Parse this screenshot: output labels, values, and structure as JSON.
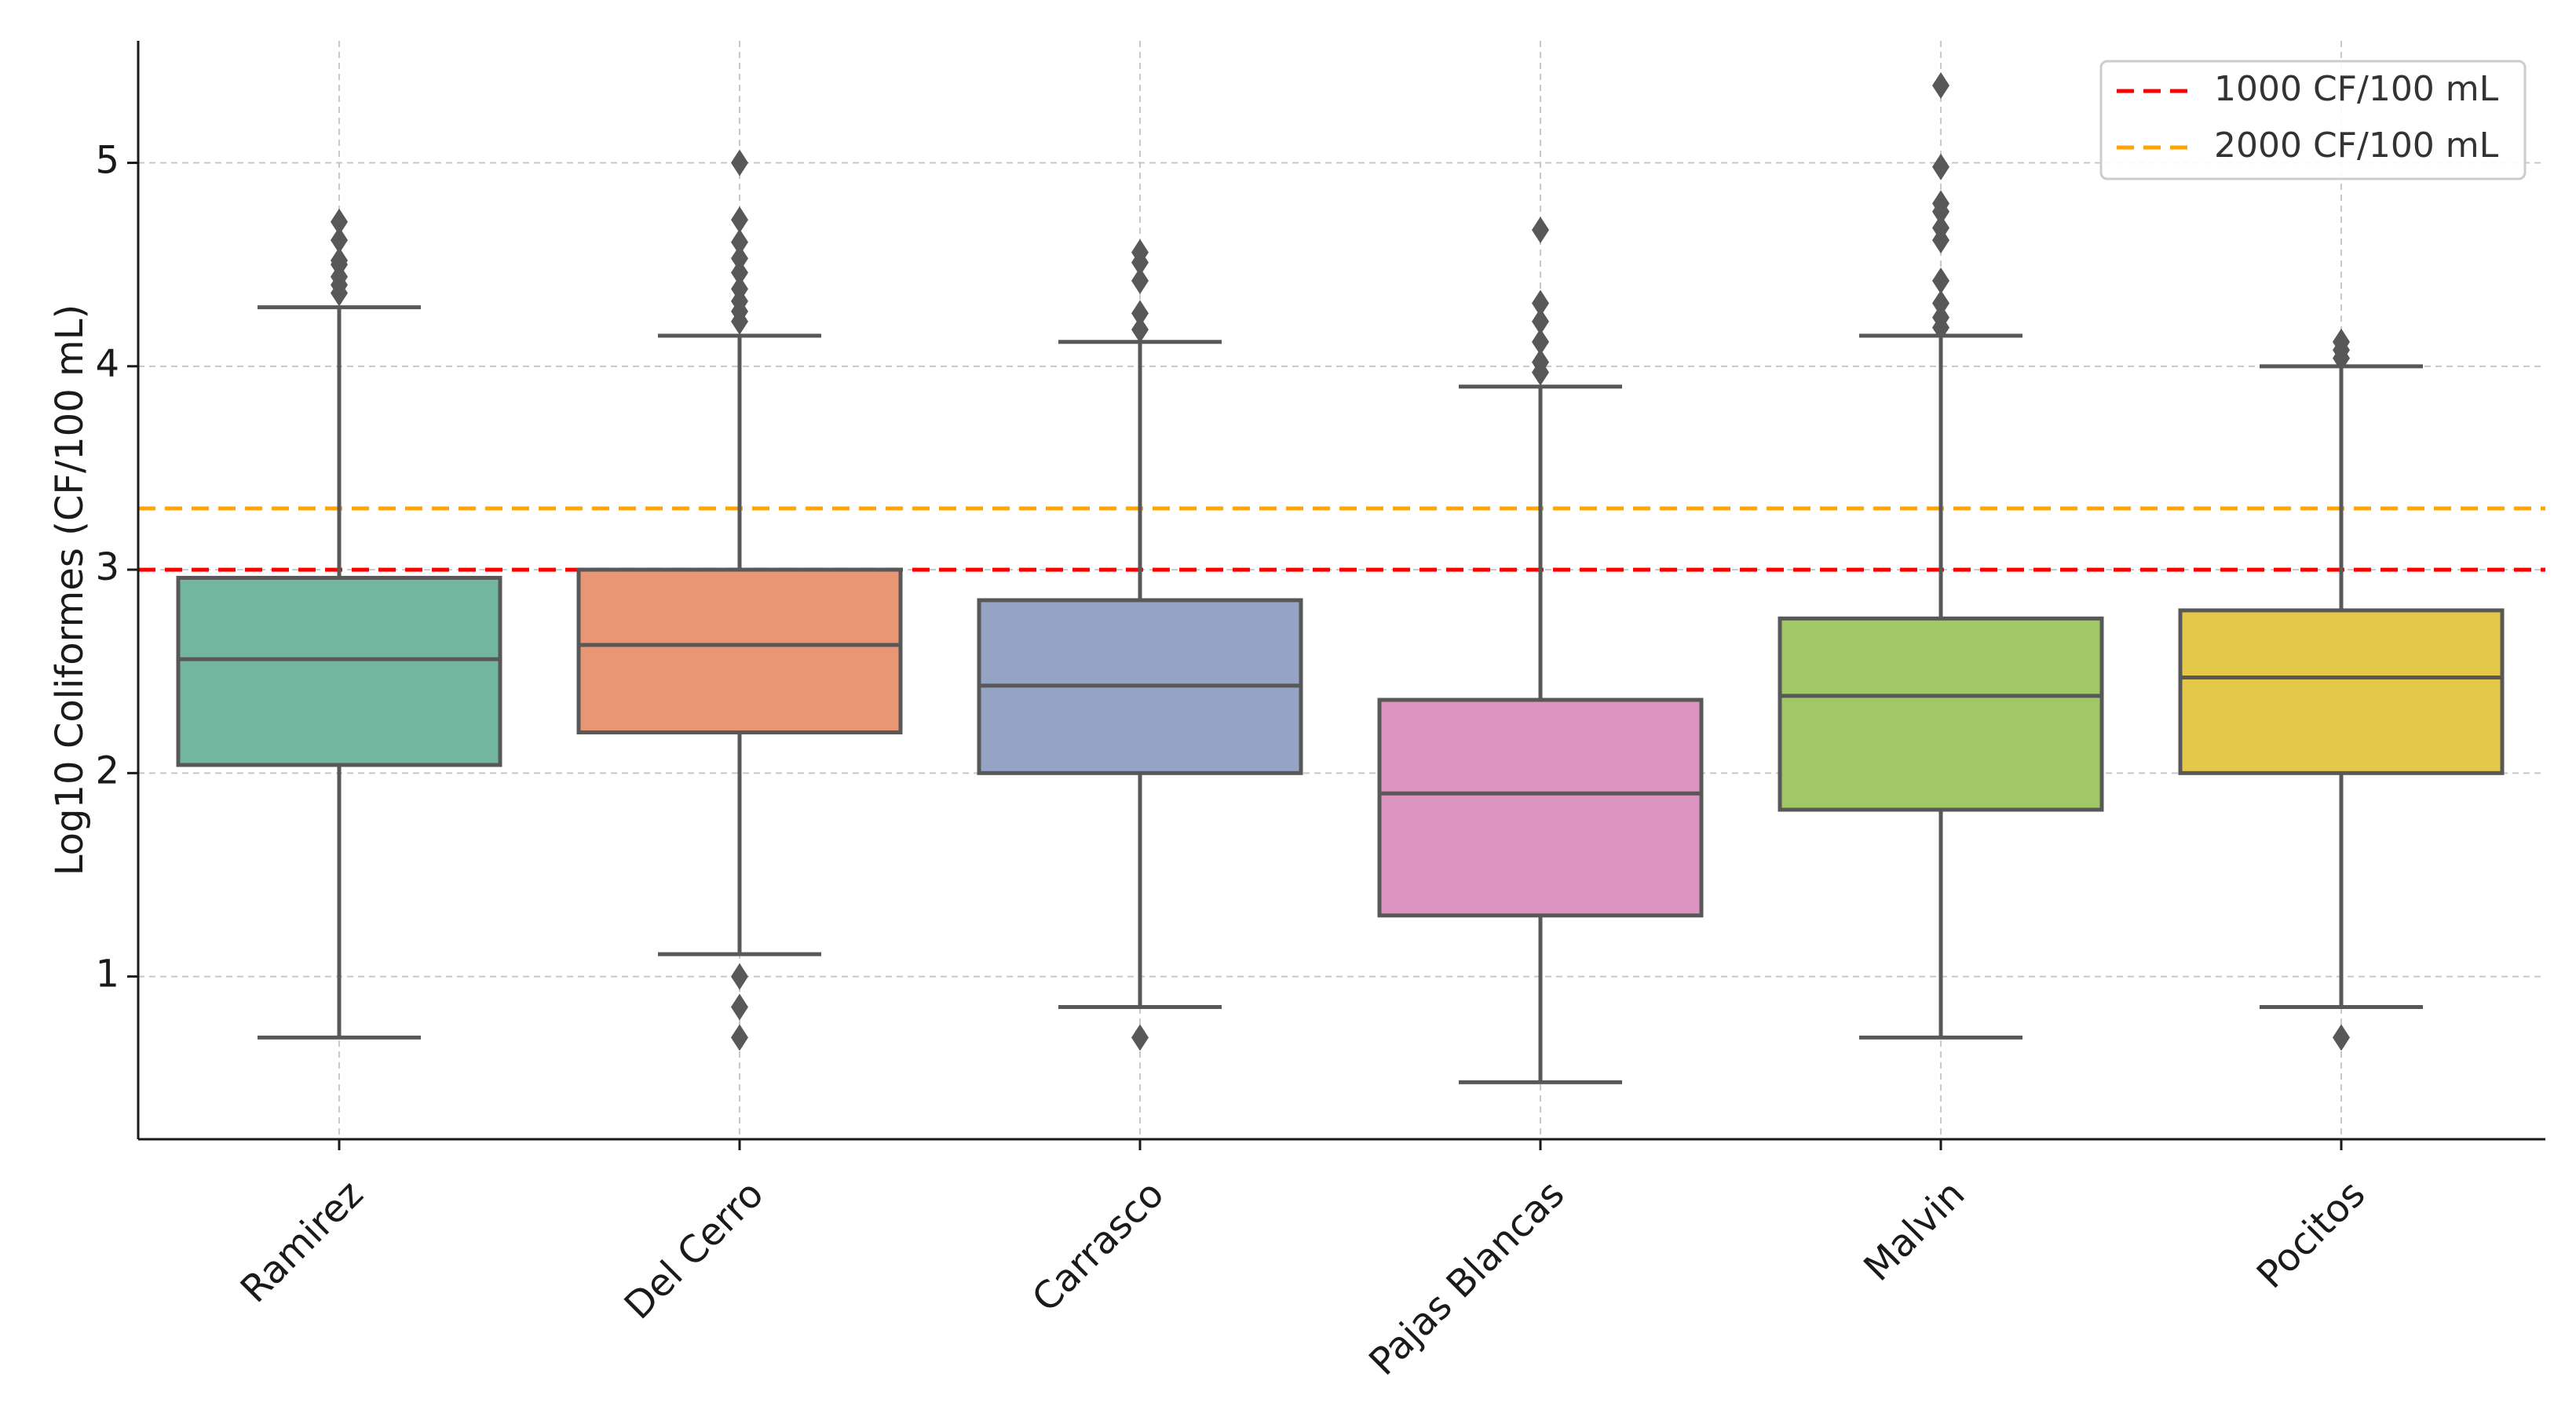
{
  "chart_data": {
    "type": "box",
    "title": "",
    "xlabel": "",
    "ylabel": "Log10 Coliformes (CF/100 mL)",
    "ylim": [
      0.2,
      5.6
    ],
    "yticks": [
      1,
      2,
      3,
      4,
      5
    ],
    "grid": true,
    "categories": [
      "Ramirez",
      "Del Cerro",
      "Carrasco",
      "Pajas Blancas",
      "Malvin",
      "Pocitos"
    ],
    "boxes": [
      {
        "name": "Ramirez",
        "color": "#72b6a0",
        "whisker_low": 0.7,
        "q1": 2.04,
        "median": 2.56,
        "q3": 2.96,
        "whisker_high": 4.29,
        "outliers": [
          4.36,
          4.4,
          4.44,
          4.5,
          4.52,
          4.62,
          4.71
        ]
      },
      {
        "name": "Del Cerro",
        "color": "#e99675",
        "whisker_low": 1.11,
        "q1": 2.2,
        "median": 2.63,
        "q3": 3.0,
        "whisker_high": 4.15,
        "outliers": [
          0.7,
          0.85,
          1.0,
          4.22,
          4.27,
          4.32,
          4.38,
          4.46,
          4.53,
          4.61,
          4.72,
          5.0
        ]
      },
      {
        "name": "Carrasco",
        "color": "#95a4c4",
        "whisker_low": 0.85,
        "q1": 2.0,
        "median": 2.43,
        "q3": 2.85,
        "whisker_high": 4.12,
        "outliers": [
          0.7,
          4.18,
          4.26,
          4.42,
          4.51,
          4.56
        ]
      },
      {
        "name": "Pajas Blancas",
        "color": "#da94bf",
        "whisker_low": 0.48,
        "q1": 1.3,
        "median": 1.9,
        "q3": 2.36,
        "whisker_high": 3.9,
        "outliers": [
          3.97,
          4.02,
          4.12,
          4.22,
          4.31,
          4.67
        ]
      },
      {
        "name": "Malvin",
        "color": "#a2c865",
        "whisker_low": 0.7,
        "q1": 1.82,
        "median": 2.38,
        "q3": 2.76,
        "whisker_high": 4.15,
        "outliers": [
          4.19,
          4.24,
          4.31,
          4.42,
          4.62,
          4.68,
          4.76,
          4.8,
          4.98,
          5.38
        ]
      },
      {
        "name": "Pocitos",
        "color": "#e3c84a",
        "whisker_low": 0.85,
        "q1": 2.0,
        "median": 2.47,
        "q3": 2.8,
        "whisker_high": 4.0,
        "outliers": [
          0.7,
          4.04,
          4.08,
          4.12
        ]
      }
    ],
    "reference_lines": [
      {
        "label": "1000 CF/100 mL",
        "y": 3.0,
        "color": "#ff0000"
      },
      {
        "label": "2000 CF/100 mL",
        "y": 3.301,
        "color": "#ffa500"
      }
    ],
    "legend": {
      "position": "top-right"
    }
  }
}
